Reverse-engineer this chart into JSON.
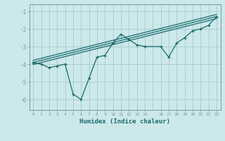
{
  "xlabel": "Humidex (Indice chaleur)",
  "bg_color": "#cce8ea",
  "grid_color": "#aacfd2",
  "line_color": "#1a6b6b",
  "xlim": [
    -0.5,
    23.5
  ],
  "ylim": [
    -6.6,
    -0.6
  ],
  "yticks": [
    -6,
    -5,
    -4,
    -3,
    -2,
    -1
  ],
  "xticks": [
    0,
    1,
    2,
    3,
    4,
    5,
    6,
    7,
    8,
    9,
    10,
    11,
    12,
    13,
    14,
    16,
    17,
    18,
    19,
    20,
    21,
    22,
    23
  ],
  "main_x": [
    0,
    1,
    2,
    3,
    4,
    5,
    6,
    7,
    8,
    9,
    10,
    11,
    12,
    13,
    14,
    16,
    17,
    18,
    19,
    20,
    21,
    22,
    23
  ],
  "main_y": [
    -3.9,
    -4.0,
    -4.2,
    -4.1,
    -4.0,
    -5.7,
    -6.0,
    -4.8,
    -3.6,
    -3.5,
    -2.8,
    -2.3,
    -2.6,
    -2.9,
    -3.0,
    -3.0,
    -3.6,
    -2.8,
    -2.5,
    -2.1,
    -2.0,
    -1.8,
    -1.3
  ],
  "line1_x": [
    0,
    23
  ],
  "line1_y": [
    -3.9,
    -1.3
  ],
  "line2_x": [
    0,
    23
  ],
  "line2_y": [
    -3.78,
    -1.18
  ],
  "line3_x": [
    0,
    23
  ],
  "line3_y": [
    -4.02,
    -1.42
  ]
}
